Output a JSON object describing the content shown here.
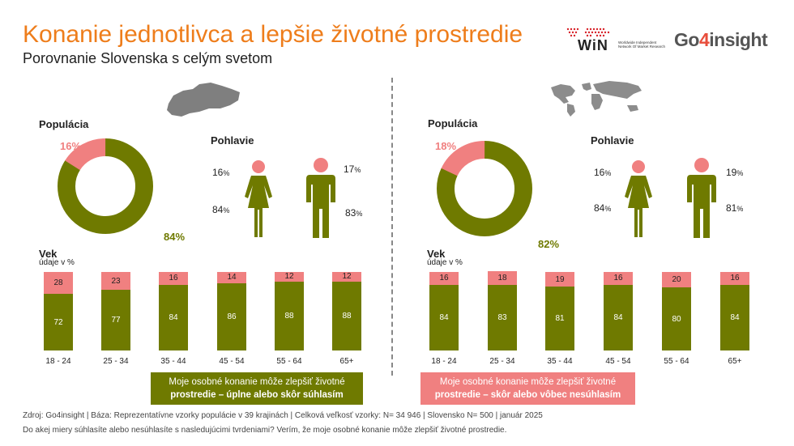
{
  "header": {
    "title": "Konanie jednotlivca a lepšie životné prostredie",
    "subtitle": "Porovnanie Slovenska s celým svetom"
  },
  "logos": {
    "win_text": "WiN",
    "win_small": "Worldwide Independent Network Of Market Research",
    "g4_left": "Go",
    "g4_four": "4",
    "g4_right": "insight"
  },
  "colors": {
    "agree": "#6f7a00",
    "disagree": "#f08080",
    "title": "#ee7d1b"
  },
  "labels": {
    "population": "Populácia",
    "gender": "Pohlavie",
    "age": "Vek",
    "unit": "údaje v %"
  },
  "legend": {
    "agree_line1": "Moje osobné konanie môže zlepšiť životné",
    "agree_line2": "prostredie – úplne alebo skôr súhlasím",
    "disagree_line1": "Moje osobné konanie môže zlepšiť životné",
    "disagree_line2": "prostredie – skôr alebo vôbec nesúhlasím"
  },
  "footer": {
    "source": "Zdroj: Go4insight | Báza: Reprezentatívne vzorky populácie v 39 krajinách | Celková veľkosť vzorky: N= 34 946 | Slovensko N= 500 | január 2025",
    "question": "Do akej miery súhlasíte alebo nesúhlasíte s nasledujúcimi tvrdeniami? Verím, že moje osobné konanie môže zlepšiť životné prostredie."
  },
  "chart_data": [
    {
      "panel": "Slovensko",
      "population": {
        "type": "pie",
        "agree": 84,
        "disagree": 16,
        "agree_label": "84%",
        "disagree_label": "16%"
      },
      "gender": {
        "female": {
          "disagree": 16,
          "agree": 84
        },
        "male": {
          "disagree": 17,
          "agree": 83
        }
      },
      "age": {
        "type": "bar",
        "categories": [
          "18 - 24",
          "25 - 34",
          "35 - 44",
          "45 - 54",
          "55 - 64",
          "65+"
        ],
        "series": [
          {
            "name": "Moje osobné konanie môže zlepšiť životné prostredie – úplne alebo skôr súhlasím",
            "values": [
              72,
              77,
              84,
              86,
              88,
              88
            ]
          },
          {
            "name": "Moje osobné konanie môže zlepšiť životné prostredie – skôr alebo vôbec nesúhlasím",
            "values": [
              28,
              23,
              16,
              14,
              12,
              12
            ]
          }
        ]
      }
    },
    {
      "panel": "Svet",
      "population": {
        "type": "pie",
        "agree": 82,
        "disagree": 18,
        "agree_label": "82%",
        "disagree_label": "18%"
      },
      "gender": {
        "female": {
          "disagree": 16,
          "agree": 84
        },
        "male": {
          "disagree": 19,
          "agree": 81
        }
      },
      "age": {
        "type": "bar",
        "categories": [
          "18 - 24",
          "25 - 34",
          "35 - 44",
          "45 - 54",
          "55 - 64",
          "65+"
        ],
        "series": [
          {
            "name": "Moje osobné konanie môže zlepšiť životné prostredie – úplne alebo skôr súhlasím",
            "values": [
              84,
              83,
              81,
              84,
              80,
              84
            ]
          },
          {
            "name": "Moje osobné konanie môže zlepšiť životné prostredie – skôr alebo vôbec nesúhlasím",
            "values": [
              16,
              18,
              19,
              16,
              20,
              16
            ]
          }
        ]
      }
    }
  ]
}
